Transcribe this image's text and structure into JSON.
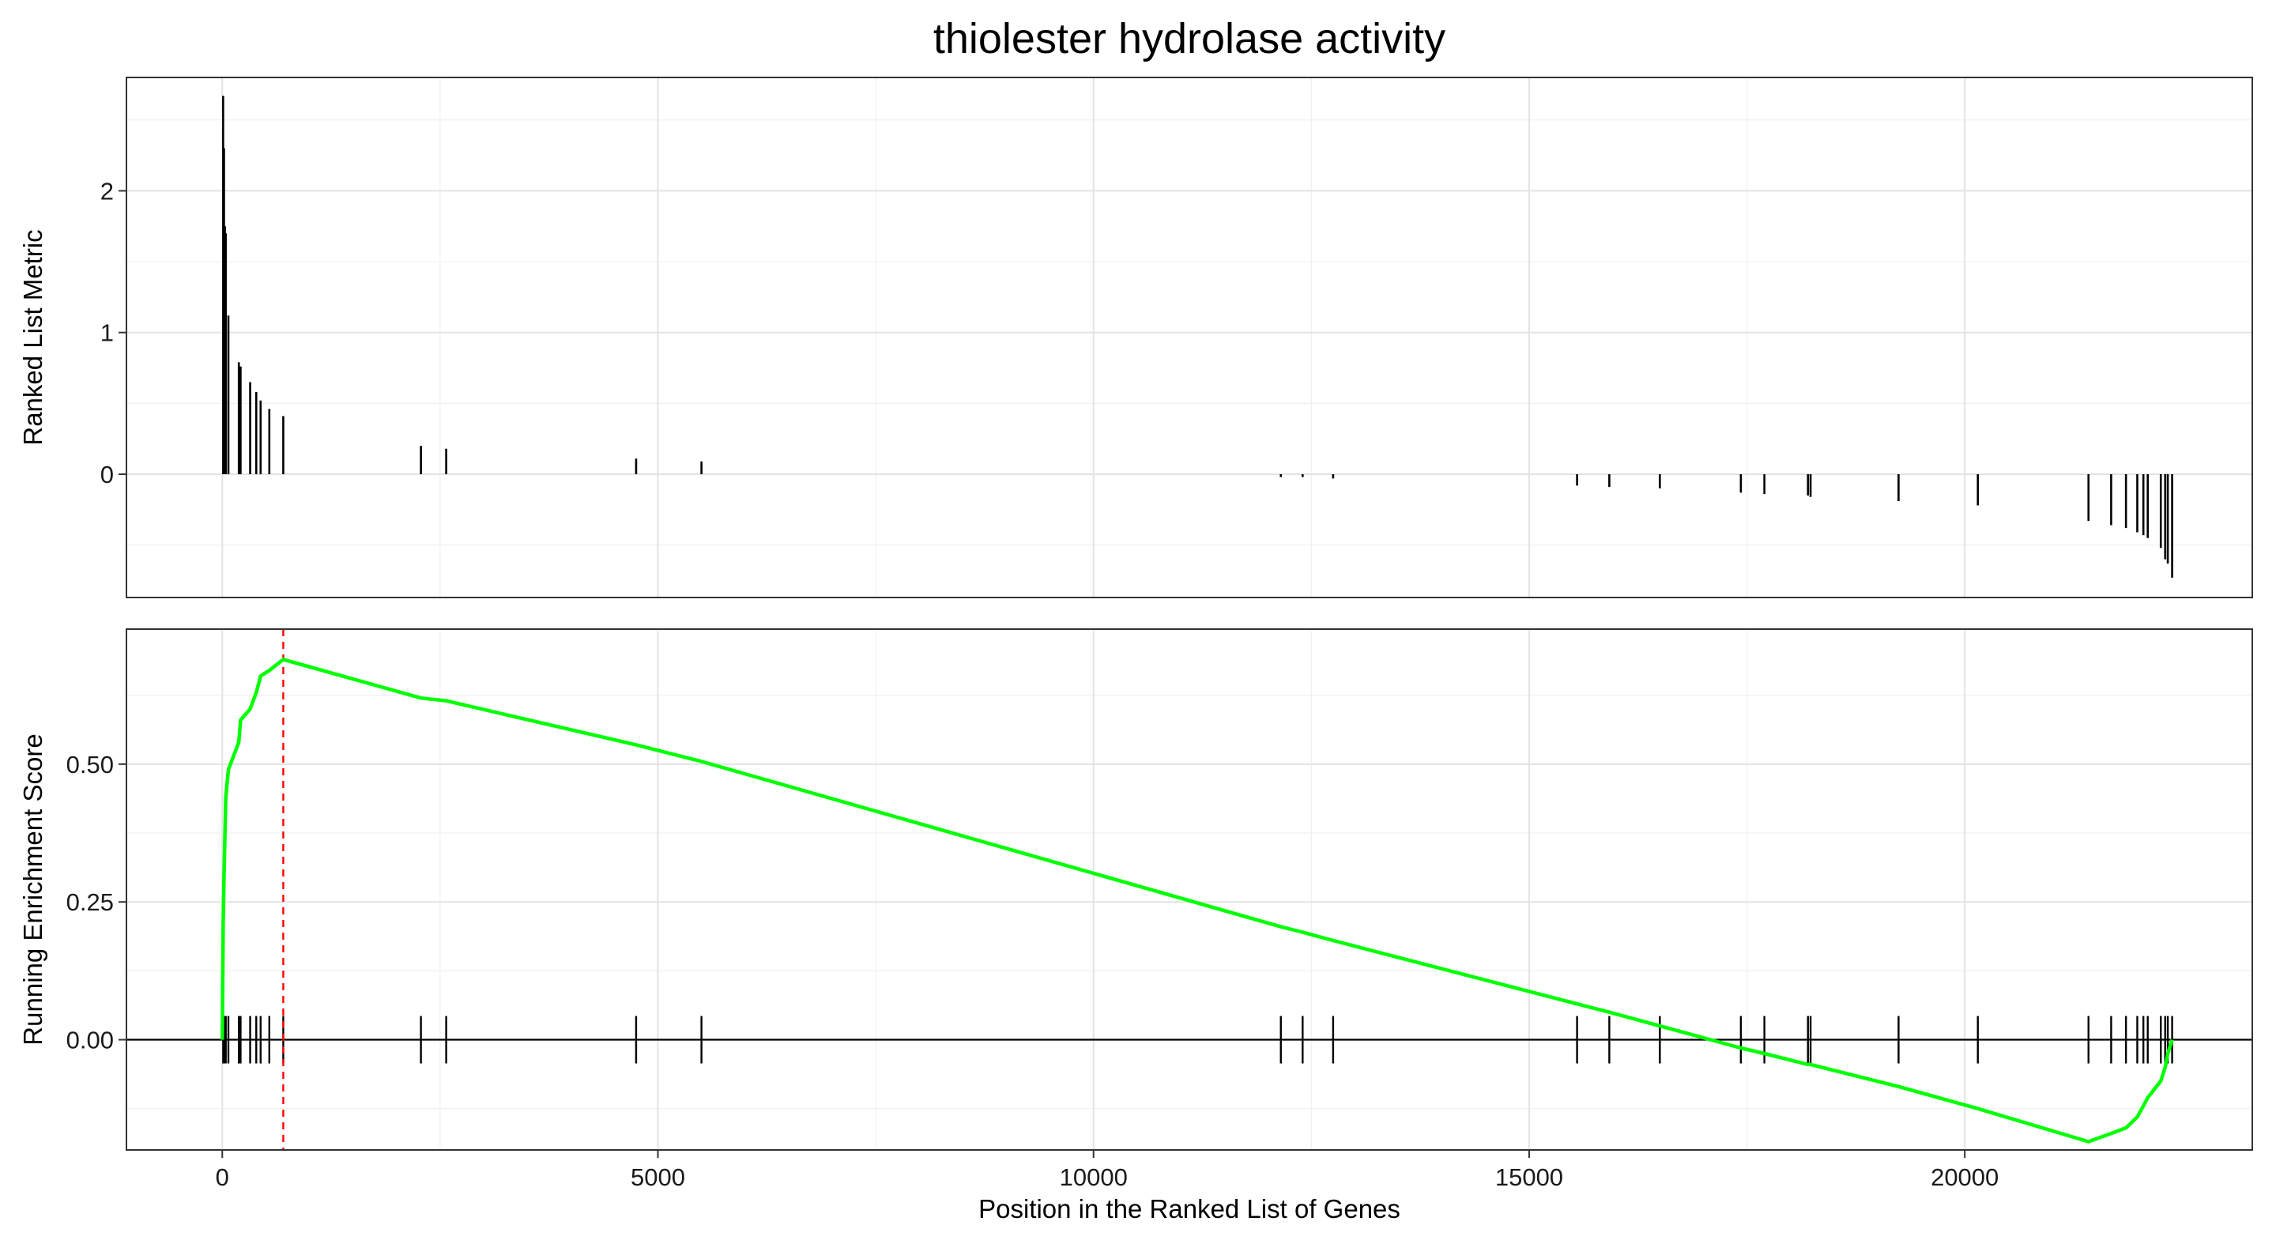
{
  "chart_data": {
    "title": "thiolester hydrolase activity",
    "xlabel": "Position in the Ranked List of Genes",
    "xlim": [
      -1100,
      23300
    ],
    "x_ticks": [
      0,
      5000,
      10000,
      15000,
      20000
    ],
    "x_tick_labels": [
      "0",
      "5000",
      "10000",
      "15000",
      "20000"
    ],
    "grid": true,
    "panels": [
      {
        "type": "bar",
        "ylabel": "Ranked List Metric",
        "ylim": [
          -0.87,
          2.8
        ],
        "y_ticks": [
          0,
          1,
          2
        ],
        "y_tick_labels": [
          "0",
          "1",
          "2"
        ],
        "bar_color": "#000000",
        "x": [
          10,
          20,
          30,
          40,
          70,
          190,
          210,
          320,
          390,
          440,
          540,
          700,
          2280,
          2570,
          4750,
          5500,
          12150,
          12400,
          12750,
          15550,
          15920,
          16500,
          17430,
          17700,
          18200,
          18230,
          19240,
          20150,
          21420,
          21680,
          21850,
          21980,
          22050,
          22100,
          22250,
          22300,
          22330,
          22380
        ],
        "values": [
          2.67,
          2.3,
          1.75,
          1.7,
          1.12,
          0.79,
          0.76,
          0.65,
          0.58,
          0.52,
          0.46,
          0.41,
          0.2,
          0.18,
          0.11,
          0.09,
          -0.02,
          -0.02,
          -0.03,
          -0.08,
          -0.09,
          -0.1,
          -0.13,
          -0.14,
          -0.15,
          -0.16,
          -0.19,
          -0.22,
          -0.33,
          -0.36,
          -0.38,
          -0.41,
          -0.43,
          -0.45,
          -0.52,
          -0.6,
          -0.63,
          -0.73
        ]
      },
      {
        "type": "line",
        "ylabel": "Running Enrichment Score",
        "ylim": [
          -0.2,
          0.745
        ],
        "y_ticks": [
          0,
          0.25,
          0.5
        ],
        "y_tick_labels": [
          "0.00",
          "0.25",
          "0.50"
        ],
        "line_color": "#00ff00",
        "max_es_position": 700,
        "max_es_line_color": "#ff0000",
        "zero_line": true,
        "hit_positions": [
          10,
          20,
          30,
          40,
          70,
          190,
          210,
          320,
          390,
          440,
          540,
          700,
          2280,
          2570,
          4750,
          5500,
          12150,
          12400,
          12750,
          15550,
          15920,
          16500,
          17430,
          17700,
          18200,
          18230,
          19240,
          20150,
          21420,
          21680,
          21850,
          21980,
          22050,
          22100,
          22250,
          22300,
          22330,
          22380
        ],
        "series": [
          {
            "x": [
              0,
              10,
              20,
              30,
              40,
              70,
              190,
              210,
              320,
              390,
              440,
              540,
              700,
              2280,
              2570,
              4750,
              5500,
              12150,
              12400,
              12750,
              15550,
              15920,
              16500,
              17430,
              17700,
              18200,
              18230,
              19240,
              20150,
              21420,
              21680,
              21850,
              21980,
              22050,
              22100,
              22250,
              22300,
              22330,
              22380
            ],
            "values": [
              0,
              0.21,
              0.3,
              0.37,
              0.44,
              0.49,
              0.54,
              0.58,
              0.6,
              0.63,
              0.66,
              0.67,
              0.69,
              0.62,
              0.615,
              0.535,
              0.505,
              0.205,
              0.195,
              0.18,
              0.065,
              0.05,
              0.025,
              -0.015,
              -0.025,
              -0.045,
              -0.045,
              -0.085,
              -0.125,
              -0.185,
              -0.17,
              -0.16,
              -0.14,
              -0.12,
              -0.105,
              -0.075,
              -0.05,
              -0.025,
              0
            ]
          }
        ]
      }
    ]
  }
}
